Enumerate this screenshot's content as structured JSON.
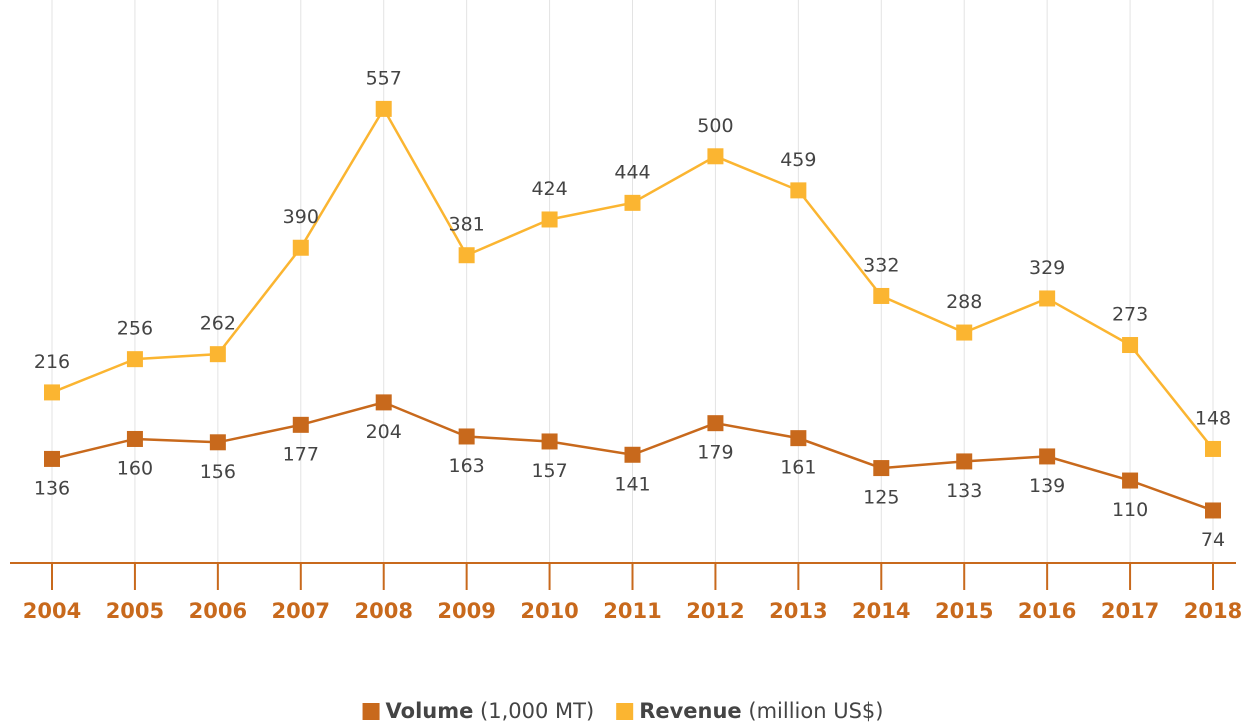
{
  "chart_data": {
    "type": "line",
    "categories": [
      "2004",
      "2005",
      "2006",
      "2007",
      "2008",
      "2009",
      "2010",
      "2011",
      "2012",
      "2013",
      "2014",
      "2015",
      "2016",
      "2017",
      "2018"
    ],
    "series": [
      {
        "name": "Volume",
        "unit": "(1,000 MT)",
        "color": "#c8691c",
        "values": [
          136,
          160,
          156,
          177,
          204,
          163,
          157,
          141,
          179,
          161,
          125,
          133,
          139,
          110,
          74
        ]
      },
      {
        "name": "Revenue",
        "unit": "(million US$)",
        "color": "#fbb531",
        "values": [
          216,
          256,
          262,
          390,
          557,
          381,
          424,
          444,
          500,
          459,
          332,
          288,
          329,
          273,
          148
        ]
      }
    ],
    "ylim": [
      0,
      700
    ],
    "grid": true,
    "legend": "bottom"
  }
}
